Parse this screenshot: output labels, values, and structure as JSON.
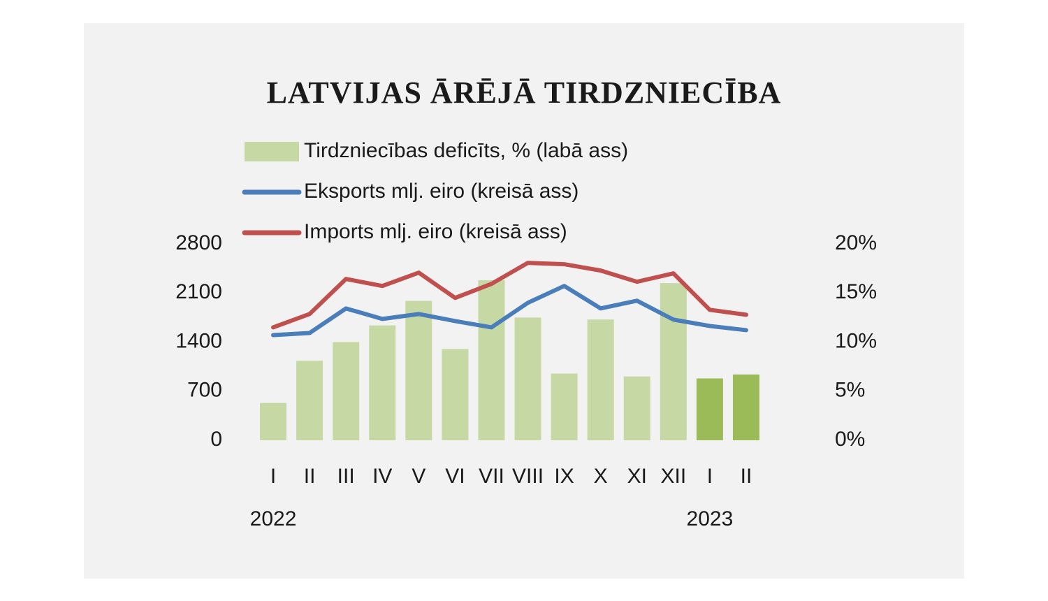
{
  "chart_data": {
    "type": "combo",
    "title": "LATVIJAS ĀRĒJĀ TIRDZNIECĪBA",
    "categories": [
      "I",
      "II",
      "III",
      "IV",
      "V",
      "VI",
      "VII",
      "VIII",
      "IX",
      "X",
      "XI",
      "XII",
      "I",
      "II"
    ],
    "years": [
      "2022",
      null,
      null,
      null,
      null,
      null,
      null,
      null,
      null,
      null,
      null,
      null,
      "2023",
      null
    ],
    "series": [
      {
        "name": "Tirdzniecības deficīts, % (labā ass)",
        "type": "bar",
        "axis": "y2",
        "color": "#c6d9a4",
        "colors": [
          "#c6d9a4",
          "#c6d9a4",
          "#c6d9a4",
          "#c6d9a4",
          "#c6d9a4",
          "#c6d9a4",
          "#c6d9a4",
          "#c6d9a4",
          "#c6d9a4",
          "#c6d9a4",
          "#c6d9a4",
          "#c6d9a4",
          "#9bbb59",
          "#9bbb59"
        ],
        "values": [
          3.8,
          8.1,
          10.0,
          11.7,
          14.2,
          9.3,
          16.3,
          12.5,
          6.8,
          12.3,
          6.5,
          16.0,
          6.3,
          6.7
        ]
      },
      {
        "name": "Eksports mlj. eiro (kreisā ass)",
        "type": "line",
        "axis": "y",
        "color": "#4a7ebb",
        "values": [
          1500,
          1530,
          1880,
          1730,
          1800,
          1700,
          1610,
          1960,
          2200,
          1880,
          1990,
          1720,
          1630,
          1570
        ]
      },
      {
        "name": "Imports mlj. eiro (kreisā ass)",
        "type": "line",
        "axis": "y",
        "color": "#c0504d",
        "values": [
          1610,
          1800,
          2300,
          2200,
          2390,
          2030,
          2230,
          2530,
          2510,
          2420,
          2260,
          2380,
          1860,
          1790
        ]
      }
    ],
    "ylim": [
      0,
      2800
    ],
    "yticks": [
      0,
      700,
      1400,
      2100,
      2800
    ],
    "y2lim": [
      0,
      20
    ],
    "y2ticks": [
      {
        "value": 0,
        "label": "0%"
      },
      {
        "value": 5,
        "label": "5%"
      },
      {
        "value": 10,
        "label": "10%"
      },
      {
        "value": 15,
        "label": "15%"
      },
      {
        "value": 20,
        "label": "20%"
      }
    ],
    "grid": false
  }
}
